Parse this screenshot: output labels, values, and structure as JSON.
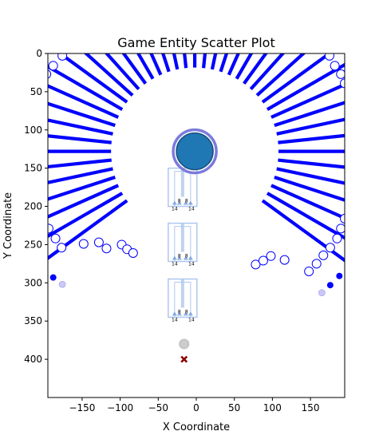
{
  "chart_data": {
    "type": "scatter",
    "title": "Game Entity Scatter Plot",
    "xlabel": "X Coordinate",
    "ylabel": "Y Coordinate",
    "xlim": [
      -195,
      195
    ],
    "ylim": [
      450,
      0
    ],
    "y_inverted": true,
    "grid": false,
    "x_ticks": [
      -150,
      -100,
      -50,
      0,
      50,
      100,
      150
    ],
    "y_ticks": [
      0,
      50,
      100,
      150,
      200,
      250,
      300,
      350,
      400
    ],
    "colors": {
      "ray": "#0000ff",
      "node_fill": "#ffffff",
      "node_edge": "#0000ff",
      "center_fill": "#1f77b4",
      "center_ring": "#7b7bdc",
      "column": "#aec7f0",
      "pale_dot": "#c9c9f5",
      "gray_dot": "#cccccc",
      "marker_x": "#8b0000"
    },
    "center": {
      "x": -2,
      "y": 128
    },
    "rays": {
      "inner_radius": 110,
      "count": 60,
      "angle_start_deg": 0,
      "angle_step_deg": 6,
      "gap_from_deg": 36,
      "gap_to_deg": 144
    },
    "nodes": [
      {
        "x": -176,
        "y": 3
      },
      {
        "x": -188,
        "y": 16
      },
      {
        "x": -197,
        "y": 27
      },
      {
        "x": -203,
        "y": 39
      },
      {
        "x": -203,
        "y": 216
      },
      {
        "x": -194,
        "y": 229
      },
      {
        "x": -185,
        "y": 242
      },
      {
        "x": -177,
        "y": 254
      },
      {
        "x": -148,
        "y": 249
      },
      {
        "x": -128,
        "y": 247
      },
      {
        "x": -118,
        "y": 255
      },
      {
        "x": -98,
        "y": 250
      },
      {
        "x": -91,
        "y": 256
      },
      {
        "x": -83,
        "y": 261
      },
      {
        "x": 78,
        "y": 276
      },
      {
        "x": 88,
        "y": 271
      },
      {
        "x": 98,
        "y": 265
      },
      {
        "x": 116,
        "y": 270
      },
      {
        "x": 148,
        "y": 285
      },
      {
        "x": 158,
        "y": 275
      },
      {
        "x": 167,
        "y": 264
      },
      {
        "x": 176,
        "y": 254
      },
      {
        "x": 185,
        "y": 242
      },
      {
        "x": 190,
        "y": 229
      },
      {
        "x": 195,
        "y": 216
      },
      {
        "x": 195,
        "y": 39
      },
      {
        "x": 190,
        "y": 27
      },
      {
        "x": 182,
        "y": 16
      },
      {
        "x": 175,
        "y": 3
      }
    ],
    "columns": [
      {
        "x": -18,
        "y_top": 150,
        "y_bottom": 200,
        "labels": {
          "left": "14",
          "mid1": "8",
          "mid2": "8",
          "right": "14"
        }
      },
      {
        "x": -18,
        "y_top": 222,
        "y_bottom": 272,
        "labels": {
          "left": "14",
          "mid1": "8",
          "mid2": "8",
          "right": "14"
        }
      },
      {
        "x": -18,
        "y_top": 295,
        "y_bottom": 345,
        "labels": {
          "left": "14",
          "mid1": "8",
          "mid2": "8",
          "right": "14"
        }
      }
    ],
    "solid_dots": [
      {
        "x": -188,
        "y": 293
      },
      {
        "x": 176,
        "y": 303
      },
      {
        "x": 188,
        "y": 291
      }
    ],
    "pale_dots": [
      {
        "x": -176,
        "y": 302
      },
      {
        "x": 165,
        "y": 313
      }
    ],
    "gray_dot": {
      "x": -16,
      "y": 380
    },
    "x_marker": {
      "x": -16,
      "y": 400
    }
  }
}
